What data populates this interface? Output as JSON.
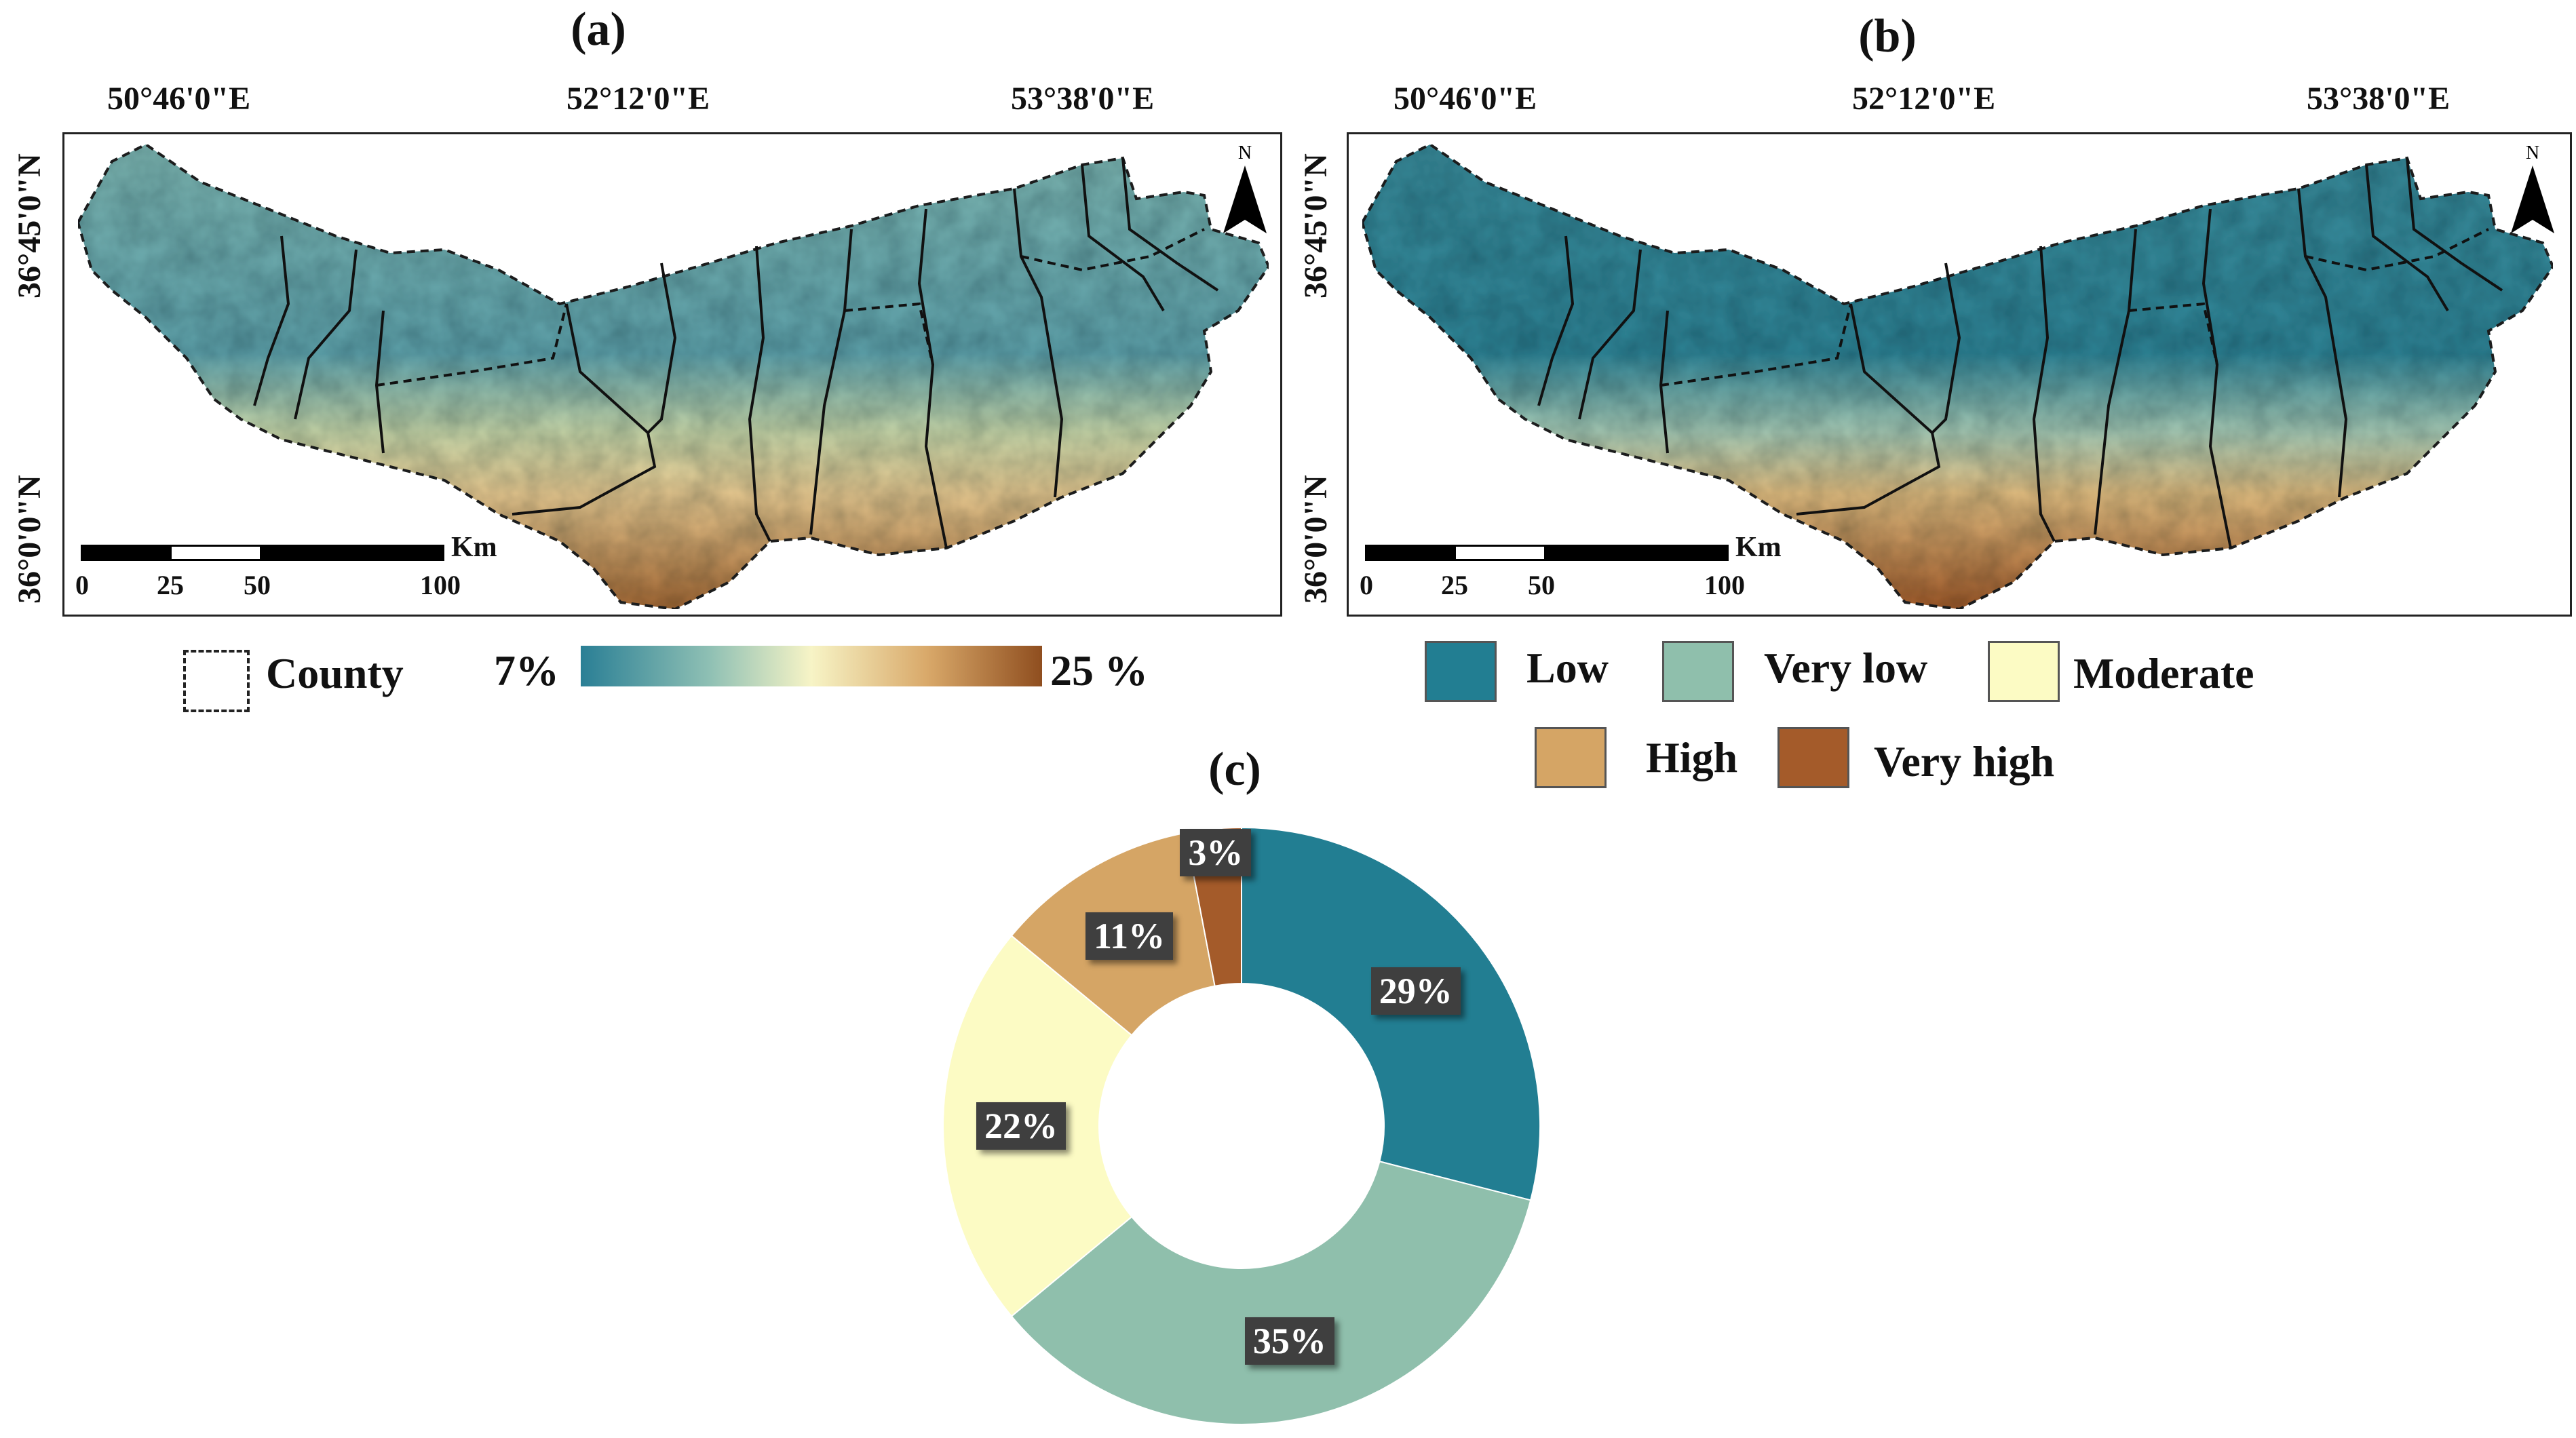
{
  "panels": {
    "a": {
      "label": "(a)",
      "lon_ticks": [
        "50°46'0\"E",
        "52°12'0\"E",
        "53°38'0\"E"
      ],
      "lat_ticks": [
        "36°45'0\"N",
        "36°0'0\"N"
      ],
      "scale": {
        "unit": "Km",
        "ticks": [
          "0",
          "25",
          "50",
          "100"
        ]
      },
      "north": "N",
      "county_legend": "County",
      "colorbar": {
        "min_label": "7%",
        "max_label": "25 %",
        "colors": [
          "#2a7f95",
          "#8fc0b4",
          "#f7f4c6",
          "#d9a96a",
          "#8f4e1f"
        ]
      }
    },
    "b": {
      "label": "(b)",
      "lon_ticks": [
        "50°46'0\"E",
        "52°12'0\"E",
        "53°38'0\"E"
      ],
      "lat_ticks": [
        "36°45'0\"N",
        "36°0'0\"N"
      ],
      "scale": {
        "unit": "Km",
        "ticks": [
          "0",
          "25",
          "50",
          "100"
        ]
      },
      "north": "N",
      "legend": [
        {
          "label": "Low",
          "color": "#227e92"
        },
        {
          "label": "Very low",
          "color": "#8fbfac"
        },
        {
          "label": "Moderate",
          "color": "#fcfbc4"
        },
        {
          "label": "High",
          "color": "#d5a565"
        },
        {
          "label": "Very high",
          "color": "#a45b2a"
        }
      ]
    },
    "c": {
      "label": "(c)"
    }
  },
  "chart_data": {
    "type": "pie",
    "style": "donut",
    "title": "(c)",
    "slices": [
      {
        "name": "Low",
        "value": 29,
        "label": "29%",
        "color": "#227e92"
      },
      {
        "name": "Very low",
        "value": 35,
        "label": "35%",
        "color": "#8fbfac"
      },
      {
        "name": "Moderate",
        "value": 22,
        "label": "22%",
        "color": "#fcfbc4"
      },
      {
        "name": "High",
        "value": 11,
        "label": "11%",
        "color": "#d5a565"
      },
      {
        "name": "Very high",
        "value": 3,
        "label": "3%",
        "color": "#a45b2a"
      }
    ]
  }
}
